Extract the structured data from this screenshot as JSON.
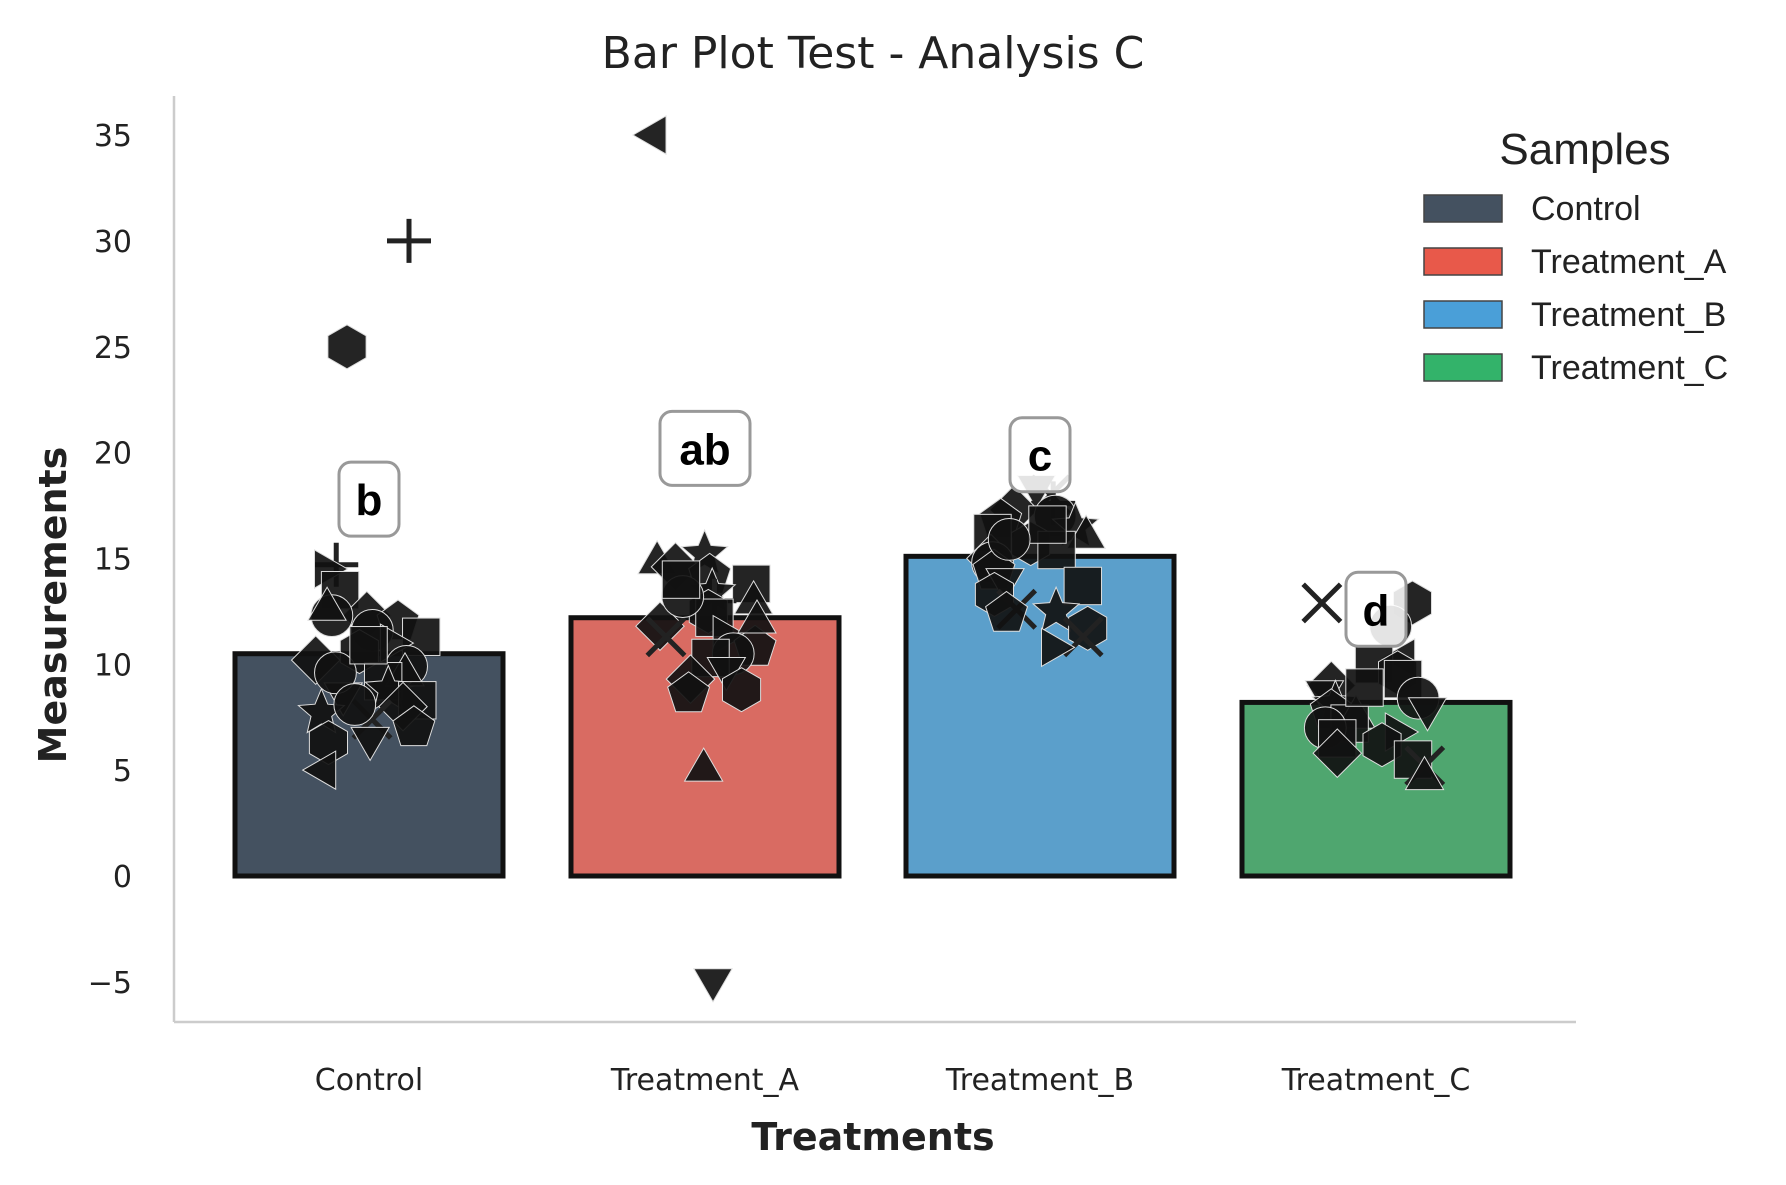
{
  "chart_data": {
    "type": "bar",
    "title": "Bar Plot Test - Analysis C",
    "xlabel": "Treatments",
    "ylabel": "Measurements",
    "ylim": [
      -7,
      37
    ],
    "yticks": [
      -5,
      0,
      5,
      10,
      15,
      20,
      25,
      30,
      35
    ],
    "grid": false,
    "categories": [
      "Control",
      "Treatment_A",
      "Treatment_B",
      "Treatment_C"
    ],
    "values": [
      10.5,
      12.2,
      15.1,
      8.2
    ],
    "colors": [
      "#445160",
      "#d96b62",
      "#5b9fcb",
      "#4fa66f"
    ],
    "significance_letters": [
      "b",
      "ab",
      "c",
      "d"
    ],
    "legend": {
      "title": "Samples",
      "position": "top-right",
      "entries": [
        {
          "label": "Control",
          "color": "#445160"
        },
        {
          "label": "Treatment_A",
          "color": "#e8594a"
        },
        {
          "label": "Treatment_B",
          "color": "#4a9fd8"
        },
        {
          "label": "Treatment_C",
          "color": "#33b36a"
        }
      ]
    },
    "points": [
      [
        {
          "v": 25.0,
          "m": "hexagon"
        },
        {
          "v": 30.0,
          "m": "plus"
        },
        {
          "v": 14.7,
          "m": "plus"
        },
        {
          "v": 14.5,
          "m": "triangle-right"
        },
        {
          "v": 13.5,
          "m": "square"
        },
        {
          "v": 12.3,
          "m": "diamond"
        },
        {
          "v": 12.3,
          "m": "circle"
        },
        {
          "v": 12.0,
          "m": "pentagon"
        },
        {
          "v": 11.6,
          "m": "circle"
        },
        {
          "v": 11.3,
          "m": "square"
        },
        {
          "v": 11.0,
          "m": "triangle-right"
        },
        {
          "v": 10.6,
          "m": "hexagon"
        },
        {
          "v": 10.2,
          "m": "diamond"
        },
        {
          "v": 9.9,
          "m": "circle"
        },
        {
          "v": 9.5,
          "m": "triangle-up"
        },
        {
          "v": 9.2,
          "m": "square"
        },
        {
          "v": 8.8,
          "m": "star"
        },
        {
          "v": 8.6,
          "m": "triangle-down"
        },
        {
          "v": 8.3,
          "m": "square"
        },
        {
          "v": 8.0,
          "m": "diamond"
        },
        {
          "v": 7.7,
          "m": "star"
        },
        {
          "v": 7.4,
          "m": "x"
        },
        {
          "v": 7.0,
          "m": "pentagon"
        },
        {
          "v": 6.5,
          "m": "triangle-down"
        },
        {
          "v": 6.3,
          "m": "hexagon"
        },
        {
          "v": 5.0,
          "m": "triangle-left"
        },
        {
          "v": 9.6,
          "m": "circle"
        },
        {
          "v": 10.9,
          "m": "square"
        },
        {
          "v": 8.1,
          "m": "circle"
        },
        {
          "v": 12.6,
          "m": "triangle-up"
        }
      ],
      [
        {
          "v": 35.0,
          "m": "triangle-left"
        },
        {
          "v": -4.9,
          "m": "triangle-down"
        },
        {
          "v": 5.0,
          "m": "triangle-up"
        },
        {
          "v": 15.2,
          "m": "star"
        },
        {
          "v": 14.8,
          "m": "triangle-up"
        },
        {
          "v": 14.6,
          "m": "diamond"
        },
        {
          "v": 14.2,
          "m": "pentagon"
        },
        {
          "v": 13.8,
          "m": "square"
        },
        {
          "v": 13.4,
          "m": "star"
        },
        {
          "v": 13.0,
          "m": "plus"
        },
        {
          "v": 12.9,
          "m": "triangle-up"
        },
        {
          "v": 12.5,
          "m": "hexagon"
        },
        {
          "v": 12.2,
          "m": "square"
        },
        {
          "v": 11.8,
          "m": "diamond"
        },
        {
          "v": 11.4,
          "m": "triangle-right"
        },
        {
          "v": 11.3,
          "m": "x"
        },
        {
          "v": 10.8,
          "m": "pentagon"
        },
        {
          "v": 10.5,
          "m": "circle"
        },
        {
          "v": 10.3,
          "m": "square"
        },
        {
          "v": 9.8,
          "m": "triangle-down"
        },
        {
          "v": 9.3,
          "m": "diamond"
        },
        {
          "v": 8.8,
          "m": "hexagon"
        },
        {
          "v": 8.6,
          "m": "pentagon"
        },
        {
          "v": 13.2,
          "m": "circle"
        },
        {
          "v": 12.0,
          "m": "triangle-up"
        },
        {
          "v": 14.0,
          "m": "square"
        }
      ],
      [
        {
          "v": 18.4,
          "m": "triangle-down"
        },
        {
          "v": 18.0,
          "m": "x"
        },
        {
          "v": 17.6,
          "m": "plus"
        },
        {
          "v": 17.3,
          "m": "diamond"
        },
        {
          "v": 17.0,
          "m": "circle"
        },
        {
          "v": 16.8,
          "m": "pentagon"
        },
        {
          "v": 16.5,
          "m": "star"
        },
        {
          "v": 16.2,
          "m": "square"
        },
        {
          "v": 16.0,
          "m": "triangle-up"
        },
        {
          "v": 15.7,
          "m": "hexagon"
        },
        {
          "v": 15.4,
          "m": "square"
        },
        {
          "v": 15.0,
          "m": "diamond"
        },
        {
          "v": 14.8,
          "m": "circle"
        },
        {
          "v": 14.4,
          "m": "pentagon"
        },
        {
          "v": 14.0,
          "m": "triangle-down"
        },
        {
          "v": 13.7,
          "m": "square"
        },
        {
          "v": 13.3,
          "m": "hexagon"
        },
        {
          "v": 12.6,
          "m": "x"
        },
        {
          "v": 12.5,
          "m": "star"
        },
        {
          "v": 12.4,
          "m": "pentagon"
        },
        {
          "v": 11.7,
          "m": "hexagon"
        },
        {
          "v": 11.3,
          "m": "x"
        },
        {
          "v": 10.8,
          "m": "triangle-right"
        },
        {
          "v": 16.6,
          "m": "square"
        },
        {
          "v": 15.9,
          "m": "circle"
        }
      ],
      [
        {
          "v": 12.9,
          "m": "hexagon"
        },
        {
          "v": 12.9,
          "m": "x"
        },
        {
          "v": 11.8,
          "m": "circle"
        },
        {
          "v": 10.3,
          "m": "triangle-left"
        },
        {
          "v": 10.0,
          "m": "square"
        },
        {
          "v": 9.6,
          "m": "hexagon"
        },
        {
          "v": 9.3,
          "m": "square"
        },
        {
          "v": 9.0,
          "m": "diamond"
        },
        {
          "v": 8.7,
          "m": "triangle-down"
        },
        {
          "v": 8.4,
          "m": "circle"
        },
        {
          "v": 8.1,
          "m": "star"
        },
        {
          "v": 7.8,
          "m": "pentagon"
        },
        {
          "v": 7.5,
          "m": "triangle-up"
        },
        {
          "v": 7.2,
          "m": "square"
        },
        {
          "v": 7.0,
          "m": "circle"
        },
        {
          "v": 6.8,
          "m": "triangle-right"
        },
        {
          "v": 6.5,
          "m": "square"
        },
        {
          "v": 6.2,
          "m": "hexagon"
        },
        {
          "v": 5.8,
          "m": "diamond"
        },
        {
          "v": 5.5,
          "m": "square"
        },
        {
          "v": 5.2,
          "m": "x"
        },
        {
          "v": 4.6,
          "m": "triangle-up"
        },
        {
          "v": 8.9,
          "m": "square"
        },
        {
          "v": 7.9,
          "m": "triangle-down"
        }
      ]
    ]
  }
}
